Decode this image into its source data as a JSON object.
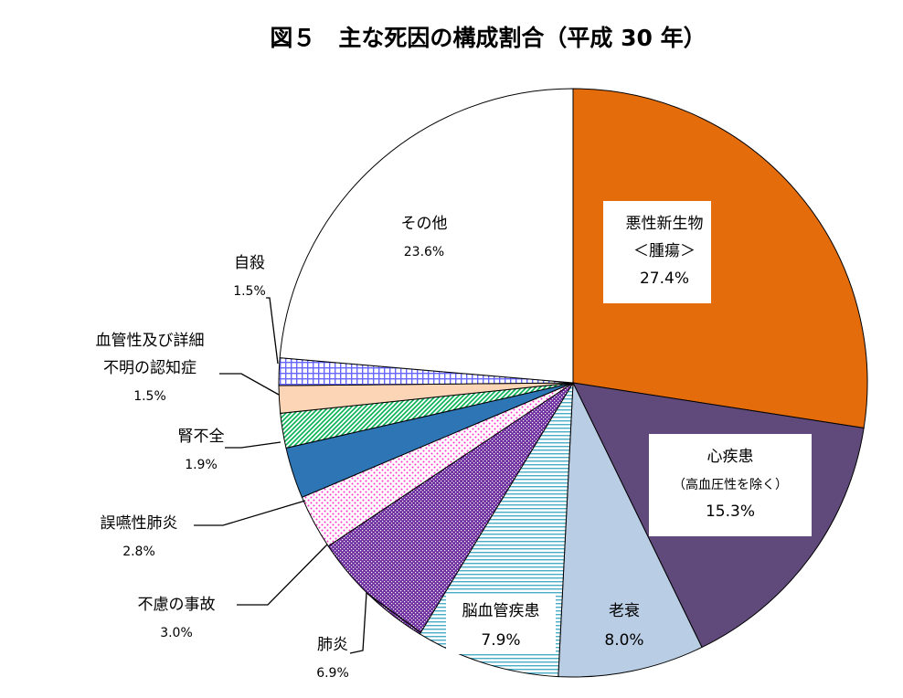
{
  "chart_data": {
    "type": "pie",
    "title": "図５　主な死因の構成割合（平成 30 年）",
    "slices": [
      {
        "label": [
          "悪性新生物",
          "＜腫瘍＞"
        ],
        "value": 27.4,
        "display": "27.4%",
        "color": "#e46c0a",
        "pattern": "solid"
      },
      {
        "label": [
          "心疾患",
          "（高血圧性を除く）"
        ],
        "value": 15.3,
        "display": "15.3%",
        "color": "#604a7b",
        "pattern": "solid"
      },
      {
        "label": [
          "老衰"
        ],
        "value": 8.0,
        "display": "8.0%",
        "color": "#b9cde5",
        "pattern": "solid"
      },
      {
        "label": [
          "脳血管疾患"
        ],
        "value": 7.9,
        "display": "7.9%",
        "color": "#4bacc6",
        "pattern": "hstripes"
      },
      {
        "label": [
          "肺炎"
        ],
        "value": 6.9,
        "display": "6.9%",
        "color": "#7030a0",
        "pattern": "dots-dark"
      },
      {
        "label": [
          "不慮の事故"
        ],
        "value": 3.0,
        "display": "3.0%",
        "color": "#ff33cc",
        "pattern": "dots-light"
      },
      {
        "label": [
          "誤嚥性肺炎"
        ],
        "value": 2.8,
        "display": "2.8%",
        "color": "#2e75b6",
        "pattern": "solid"
      },
      {
        "label": [
          "腎不全"
        ],
        "value": 1.9,
        "display": "1.9%",
        "color": "#00b050",
        "pattern": "diagonal"
      },
      {
        "label": [
          "血管性及び詳細",
          "不明の認知症"
        ],
        "value": 1.5,
        "display": "1.5%",
        "color": "#fbd5b5",
        "pattern": "solid"
      },
      {
        "label": [
          "自殺"
        ],
        "value": 1.5,
        "display": "1.5%",
        "color": "#6666ff",
        "pattern": "grid"
      },
      {
        "label": [
          "その他"
        ],
        "value": 23.6,
        "display": "23.6%",
        "color": "#ffffff",
        "pattern": "solid"
      }
    ]
  }
}
